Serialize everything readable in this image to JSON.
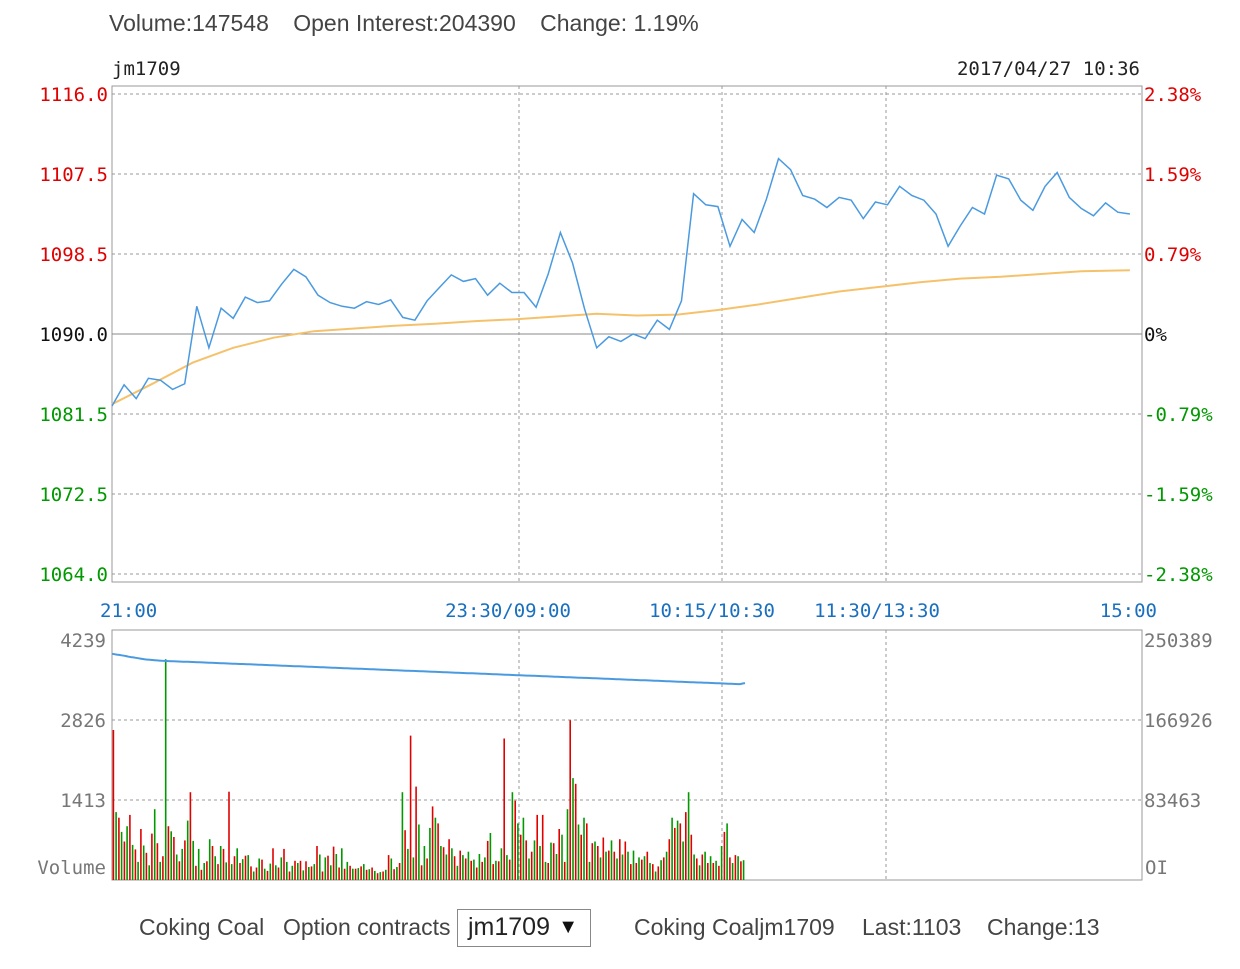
{
  "header": {
    "volume": "Volume:147548",
    "open_interest": "Open Interest:204390",
    "change": "Change: 1.19%"
  },
  "footer": {
    "product": "Coking Coal",
    "option_label": "Option contracts",
    "selected_contract": "jm1709",
    "quote_name": "Coking Coaljm1709",
    "last": "Last:1103",
    "change": "Change:13"
  },
  "colors": {
    "price_line": "#4a9ae0",
    "avg_line": "#f5c26b",
    "oi_line": "#4a9ae0",
    "up": "#e00000",
    "down": "#009900",
    "grid": "#999999",
    "time_label": "#1a6fbf"
  },
  "chart_data": [
    {
      "type": "line",
      "title": "jm1709",
      "timestamp": "2017/04/27 10:36",
      "ylim": [
        1064.0,
        1116.0
      ],
      "base_price": 1090.0,
      "y_ticks": [
        "1116.0",
        "1107.5",
        "1098.5",
        "1090.0",
        "1081.5",
        "1072.5",
        "1064.0"
      ],
      "y_ticks_right": [
        "2.38%",
        "1.59%",
        "0.79%",
        "0%",
        "-0.79%",
        "-1.59%",
        "-2.38%"
      ],
      "x_ticks": [
        "21:00",
        "23:30/09:00",
        "10:15/10:30",
        "11:30/13:30",
        "15:00"
      ],
      "x_range": [
        0,
        255
      ],
      "series": [
        {
          "key": "price",
          "x": [
            0,
            3,
            6,
            9,
            12,
            15,
            18,
            21,
            24,
            27,
            30,
            33,
            36,
            39,
            42,
            45,
            48,
            51,
            54,
            57,
            60,
            63,
            66,
            69,
            72,
            75,
            78,
            81,
            84,
            87,
            90,
            93,
            96,
            99,
            102,
            105,
            108,
            111,
            114,
            117,
            120,
            123,
            126,
            129,
            132,
            135,
            138,
            141,
            144,
            147,
            150,
            153,
            156,
            159,
            162,
            165,
            168,
            171,
            174,
            177,
            180,
            183,
            186,
            189,
            192,
            195,
            198,
            201,
            204,
            207,
            210,
            213,
            216,
            219,
            222,
            225,
            228,
            231,
            234,
            237,
            240,
            243,
            246,
            249,
            252
          ],
          "values": [
            1082.2,
            1084.5,
            1083.0,
            1085.2,
            1085.0,
            1084.0,
            1084.6,
            1093.0,
            1088.5,
            1092.8,
            1091.7,
            1094.0,
            1093.4,
            1093.6,
            1095.4,
            1097.0,
            1096.2,
            1094.2,
            1093.4,
            1093.0,
            1092.8,
            1093.5,
            1093.2,
            1093.7,
            1091.8,
            1091.5,
            1093.6,
            1095.0,
            1096.4,
            1095.7,
            1096.0,
            1094.2,
            1095.5,
            1094.5,
            1094.5,
            1092.9,
            1096.5,
            1101.0,
            1097.7,
            1092.7,
            1088.5,
            1089.7,
            1089.2,
            1090.0,
            1089.5,
            1091.5,
            1090.5,
            1093.6,
            1105.2,
            1104.0,
            1103.8,
            1099.5,
            1102.4,
            1101.0,
            1104.6,
            1109.0,
            1107.8,
            1105.0,
            1104.6,
            1103.7,
            1104.8,
            1104.5,
            1102.5,
            1104.3,
            1104.0,
            1106.0,
            1105.0,
            1104.5,
            1103.0,
            1099.5,
            1101.7,
            1103.7,
            1103.0,
            1107.2,
            1106.8,
            1104.5,
            1103.4,
            1106.0,
            1107.5,
            1104.8,
            1103.6,
            1102.8,
            1104.2,
            1103.2,
            1103.0
          ]
        },
        {
          "key": "average",
          "x": [
            0,
            10,
            20,
            30,
            40,
            50,
            60,
            70,
            80,
            90,
            100,
            110,
            120,
            130,
            140,
            150,
            160,
            170,
            180,
            190,
            200,
            210,
            220,
            230,
            240,
            252
          ],
          "values": [
            1082.4,
            1084.6,
            1086.9,
            1088.5,
            1089.6,
            1090.3,
            1090.6,
            1090.9,
            1091.1,
            1091.4,
            1091.6,
            1091.9,
            1092.2,
            1092.0,
            1092.1,
            1092.6,
            1093.2,
            1093.9,
            1094.6,
            1095.1,
            1095.6,
            1096.0,
            1096.2,
            1096.5,
            1096.8,
            1096.9
          ]
        }
      ]
    },
    {
      "type": "bar",
      "title": "Volume",
      "right_title": "OI",
      "ylim": [
        0,
        4239
      ],
      "y_ticks": [
        "4239",
        "2826",
        "1413"
      ],
      "y_ticks_right": [
        "250389",
        "166926",
        "83463"
      ],
      "oi_ylim": [
        0,
        250389
      ],
      "volume": [
        2650,
        1200,
        1100,
        850,
        680,
        950,
        1150,
        620,
        540,
        320,
        900,
        610,
        480,
        260,
        820,
        1250,
        650,
        320,
        420,
        3900,
        950,
        860,
        760,
        450,
        330,
        550,
        700,
        1050,
        1550,
        690,
        250,
        550,
        180,
        300,
        330,
        720,
        600,
        420,
        280,
        600,
        550,
        310,
        1560,
        280,
        420,
        560,
        300,
        370,
        430,
        440,
        240,
        150,
        220,
        380,
        360,
        200,
        160,
        290,
        560,
        260,
        220,
        400,
        550,
        320,
        150,
        250,
        340,
        300,
        340,
        170,
        330,
        230,
        240,
        280,
        600,
        450,
        150,
        400,
        430,
        260,
        590,
        460,
        220,
        560,
        200,
        320,
        250,
        200,
        200,
        210,
        240,
        280,
        180,
        190,
        220,
        160,
        120,
        140,
        150,
        180,
        440,
        380,
        190,
        230,
        300,
        1550,
        880,
        550,
        2550,
        400,
        1650,
        980,
        260,
        600,
        380,
        920,
        1300,
        1100,
        1000,
        600,
        580,
        450,
        720,
        560,
        420,
        250,
        520,
        440,
        380,
        500,
        340,
        360,
        220,
        460,
        320,
        400,
        690,
        830,
        280,
        340,
        330,
        560,
        2500,
        440,
        360,
        1550,
        1400,
        1000,
        800,
        1100,
        700,
        380,
        500,
        700,
        1150,
        600,
        1150,
        320,
        300,
        660,
        650,
        460,
        900,
        800,
        320,
        1250,
        2820,
        1800,
        1700,
        980,
        800,
        1100,
        1000,
        320,
        650,
        680,
        600,
        400,
        750,
        500,
        520,
        700,
        500,
        380,
        720,
        450,
        680,
        500,
        280,
        520,
        300,
        400,
        360,
        420,
        500,
        300,
        280,
        150,
        240,
        350,
        400,
        500,
        720,
        1100,
        920,
        1050,
        1000,
        680,
        1200,
        1550,
        800,
        450,
        380,
        260,
        450,
        500,
        300,
        420,
        300,
        340,
        250,
        600,
        850,
        1000,
        400,
        300,
        440,
        420,
        330,
        350
      ],
      "oi": [
        236000,
        235600,
        235200,
        234800,
        234400,
        234000,
        233600,
        233000,
        232600,
        232200,
        231800,
        231400,
        231000,
        230600,
        230200,
        229900,
        229700,
        229500,
        229300,
        229100,
        228900,
        228700,
        228600,
        228500,
        228400,
        228300,
        228200,
        228100,
        228000,
        227900,
        227800,
        227700,
        227600,
        227500,
        227400,
        227300,
        227200,
        227100,
        227000,
        226900,
        226800,
        226700,
        226600,
        226500,
        226400,
        226300,
        226200,
        226100,
        226000,
        225900,
        225800,
        225700,
        225600,
        225500,
        225400,
        225300,
        225200,
        225100,
        225000,
        224900,
        224800,
        224700,
        224600,
        224500,
        224400,
        224300,
        224200,
        224100,
        224000,
        223900,
        223800,
        223700,
        223600,
        223500,
        223400,
        223300,
        223200,
        223100,
        223000,
        222900,
        222800,
        222700,
        222600,
        222500,
        222400,
        222300,
        222200,
        222100,
        222000,
        221900,
        221800,
        221700,
        221600,
        221500,
        221400,
        221300,
        221200,
        221100,
        221000,
        220900,
        220800,
        220700,
        220600,
        220500,
        220400,
        220300,
        220200,
        220100,
        220000,
        219900,
        219800,
        219700,
        219600,
        219500,
        219400,
        219300,
        219200,
        219100,
        219000,
        218900,
        218800,
        218700,
        218600,
        218500,
        218400,
        218300,
        218200,
        218100,
        218000,
        217900,
        217800,
        217700,
        217600,
        217500,
        217400,
        217300,
        217200,
        217100,
        217000,
        216900,
        216800,
        216700,
        216600,
        216500,
        216400,
        216300,
        216200,
        216100,
        216000,
        215900,
        215800,
        215700,
        215600,
        215500,
        215400,
        215300,
        215200,
        215100,
        215000,
        214900,
        214800,
        214700,
        214600,
        214500,
        214400,
        214300,
        214200,
        214100,
        214000,
        213900,
        213800,
        213700,
        213600,
        213500,
        213400,
        213300,
        213200,
        213100,
        213000,
        212900,
        212800,
        212700,
        212600,
        212500,
        212400,
        212300,
        212200,
        212100,
        212000,
        211900,
        211800,
        211700,
        211600,
        211500,
        211400,
        211300,
        211200,
        211100,
        211000,
        210900,
        210800,
        210700,
        210600,
        210500,
        210400,
        210300,
        210200,
        210100,
        210000,
        209900,
        209800,
        209700,
        209600,
        209500,
        209400,
        209300,
        209200,
        209100,
        209000,
        208900,
        208800,
        208700,
        208600,
        208500,
        208400,
        208300,
        208200,
        208100,
        208000,
        207900,
        207800,
        207700,
        207600,
        207500,
        207400,
        207300,
        207200,
        207100,
        207000,
        206900,
        206800,
        206700,
        206600,
        206500,
        206400,
        206300,
        206200,
        206100,
        206000,
        205900,
        205800,
        205700,
        205600,
        205500,
        205400,
        205300,
        205200,
        205100,
        205000,
        204900,
        204800,
        204700,
        204600,
        204500,
        204400,
        204390,
        205000,
        205400
      ]
    }
  ]
}
